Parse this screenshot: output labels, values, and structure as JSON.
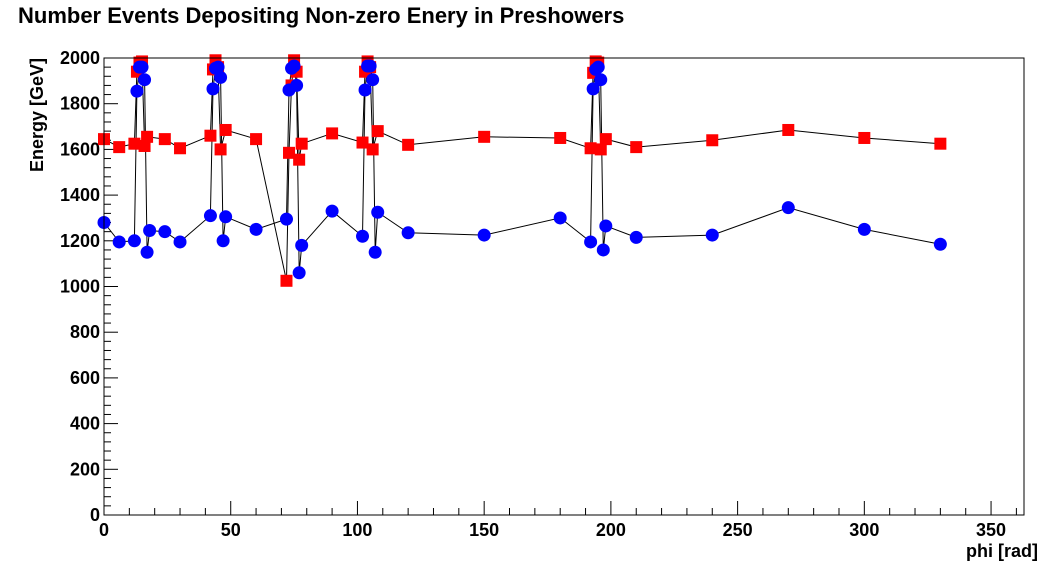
{
  "chart_data": {
    "type": "scatter",
    "title": "Number Events Depositing Non-zero Enery in Preshowers",
    "xlabel": "phi [rad]",
    "ylabel": "Energy [GeV]",
    "xlim": [
      0,
      363
    ],
    "ylim": [
      0,
      2000
    ],
    "x_ticks": [
      0,
      50,
      100,
      150,
      200,
      250,
      300,
      350
    ],
    "y_ticks": [
      0,
      200,
      400,
      600,
      800,
      1000,
      1200,
      1400,
      1600,
      1800,
      2000
    ],
    "grid": false,
    "series": [
      {
        "marker": "square",
        "color": "#ff0000",
        "connected": true,
        "points": [
          [
            0,
            1645
          ],
          [
            6,
            1610
          ],
          [
            12,
            1625
          ],
          [
            13,
            1940
          ],
          [
            14,
            1980
          ],
          [
            15,
            1985
          ],
          [
            16,
            1615
          ],
          [
            17,
            1655
          ],
          [
            24,
            1645
          ],
          [
            30,
            1605
          ],
          [
            42,
            1660
          ],
          [
            43,
            1950
          ],
          [
            44,
            1990
          ],
          [
            45,
            1960
          ],
          [
            46,
            1600
          ],
          [
            48,
            1685
          ],
          [
            60,
            1645
          ],
          [
            72,
            1025
          ],
          [
            73,
            1585
          ],
          [
            74,
            1880
          ],
          [
            75,
            1990
          ],
          [
            76,
            1940
          ],
          [
            77,
            1555
          ],
          [
            78,
            1625
          ],
          [
            90,
            1670
          ],
          [
            102,
            1630
          ],
          [
            103,
            1940
          ],
          [
            104,
            1985
          ],
          [
            105,
            1960
          ],
          [
            106,
            1600
          ],
          [
            108,
            1680
          ],
          [
            120,
            1620
          ],
          [
            150,
            1655
          ],
          [
            180,
            1650
          ],
          [
            192,
            1605
          ],
          [
            193,
            1935
          ],
          [
            194,
            1985
          ],
          [
            195,
            1980
          ],
          [
            196,
            1600
          ],
          [
            198,
            1645
          ],
          [
            210,
            1610
          ],
          [
            240,
            1640
          ],
          [
            270,
            1685
          ],
          [
            300,
            1650
          ],
          [
            330,
            1625
          ]
        ]
      },
      {
        "marker": "circle",
        "color": "#0000ff",
        "connected": true,
        "points": [
          [
            0,
            1280
          ],
          [
            6,
            1195
          ],
          [
            12,
            1200
          ],
          [
            13,
            1855
          ],
          [
            14,
            1960
          ],
          [
            15,
            1960
          ],
          [
            16,
            1905
          ],
          [
            17,
            1150
          ],
          [
            18,
            1245
          ],
          [
            24,
            1240
          ],
          [
            30,
            1195
          ],
          [
            42,
            1310
          ],
          [
            43,
            1865
          ],
          [
            44,
            1955
          ],
          [
            45,
            1960
          ],
          [
            46,
            1915
          ],
          [
            47,
            1200
          ],
          [
            48,
            1305
          ],
          [
            60,
            1250
          ],
          [
            72,
            1295
          ],
          [
            73,
            1860
          ],
          [
            74,
            1955
          ],
          [
            75,
            1965
          ],
          [
            76,
            1880
          ],
          [
            77,
            1060
          ],
          [
            78,
            1180
          ],
          [
            90,
            1330
          ],
          [
            102,
            1220
          ],
          [
            103,
            1860
          ],
          [
            104,
            1965
          ],
          [
            105,
            1965
          ],
          [
            106,
            1905
          ],
          [
            107,
            1150
          ],
          [
            108,
            1325
          ],
          [
            120,
            1235
          ],
          [
            150,
            1225
          ],
          [
            180,
            1300
          ],
          [
            192,
            1195
          ],
          [
            193,
            1865
          ],
          [
            194,
            1950
          ],
          [
            195,
            1960
          ],
          [
            196,
            1905
          ],
          [
            197,
            1160
          ],
          [
            198,
            1265
          ],
          [
            210,
            1215
          ],
          [
            240,
            1225
          ],
          [
            270,
            1345
          ],
          [
            300,
            1250
          ],
          [
            330,
            1185
          ]
        ]
      }
    ]
  }
}
